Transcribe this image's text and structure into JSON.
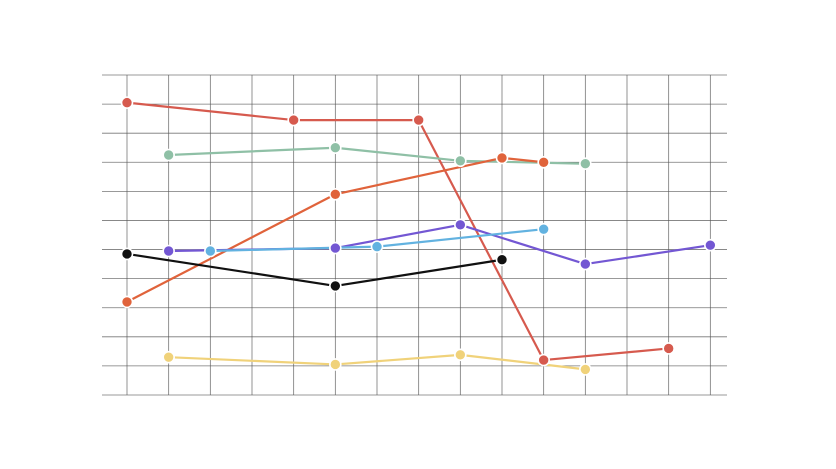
{
  "chart_data": {
    "type": "line",
    "title": "",
    "xlabel": "",
    "ylabel": "",
    "xlim": [
      -0.6,
      14.4
    ],
    "ylim": [
      0,
      11
    ],
    "grid": true,
    "legend": "none",
    "series": [
      {
        "color": "#d65a4e",
        "points": [
          [
            0,
            10.05
          ],
          [
            4,
            9.45
          ],
          [
            7,
            9.45
          ],
          [
            10,
            1.2
          ],
          [
            13,
            1.6
          ]
        ]
      },
      {
        "color": "#8fc0a6",
        "points": [
          [
            1,
            8.25
          ],
          [
            5,
            8.5
          ],
          [
            8,
            8.05
          ],
          [
            11,
            7.95
          ]
        ]
      },
      {
        "color": "#e0633b",
        "points": [
          [
            0,
            3.2
          ],
          [
            5,
            6.9
          ],
          [
            9,
            8.15
          ],
          [
            10,
            8.0
          ]
        ]
      },
      {
        "color": "#7357d3",
        "points": [
          [
            1,
            4.95
          ],
          [
            5,
            5.05
          ],
          [
            8,
            5.85
          ],
          [
            11,
            4.5
          ],
          [
            14,
            5.15
          ]
        ]
      },
      {
        "color": "#62b2e0",
        "points": [
          [
            2,
            4.95
          ],
          [
            6,
            5.1
          ],
          [
            10,
            5.7
          ]
        ]
      },
      {
        "color": "#111111",
        "points": [
          [
            0,
            4.85
          ],
          [
            5,
            3.75
          ],
          [
            9,
            4.65
          ]
        ]
      },
      {
        "color": "#f0d27a",
        "points": [
          [
            1,
            1.3
          ],
          [
            5,
            1.05
          ],
          [
            8,
            1.38
          ],
          [
            11,
            0.88
          ]
        ]
      }
    ]
  }
}
